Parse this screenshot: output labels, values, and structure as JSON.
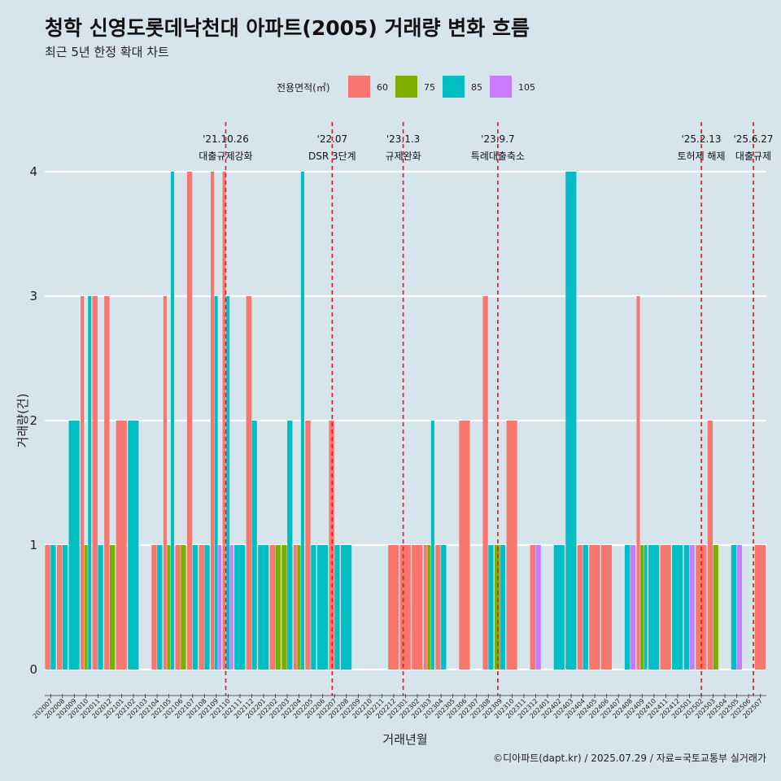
{
  "chart_data": {
    "type": "bar",
    "title": "청학 신영도롯데낙천대 아파트(2005) 거래량 변화 흐름",
    "subtitle": "최근 5년 한정 확대 차트",
    "xlabel": "거래년월",
    "ylabel": "거래량(건)",
    "ylim": [
      0,
      4
    ],
    "yticks": [
      0,
      1,
      2,
      3,
      4
    ],
    "caption": "©디아파트(dapt.kr) / 2025.07.29 / 자료=국토교통부 실거래가",
    "legend": {
      "title": "전용면적(㎡)",
      "entries": [
        {
          "label": "60",
          "color": "#F8766D"
        },
        {
          "label": "75",
          "color": "#7CAE00"
        },
        {
          "label": "85",
          "color": "#00BFC4"
        },
        {
          "label": "105",
          "color": "#C77CFF"
        }
      ]
    },
    "categories": [
      "202007",
      "202008",
      "202009",
      "202010",
      "202011",
      "202012",
      "202101",
      "202102",
      "202103",
      "202104",
      "202105",
      "202106",
      "202107",
      "202108",
      "202109",
      "202110",
      "202111",
      "202112",
      "202201",
      "202202",
      "202203",
      "202204",
      "202205",
      "202206",
      "202207",
      "202208",
      "202209",
      "202210",
      "202211",
      "202212",
      "202301",
      "202302",
      "202303",
      "202304",
      "202305",
      "202306",
      "202307",
      "202308",
      "202309",
      "202310",
      "202311",
      "202312",
      "202401",
      "202402",
      "202403",
      "202404",
      "202405",
      "202406",
      "202407",
      "202408",
      "202409",
      "202410",
      "202411",
      "202412",
      "202501",
      "202502",
      "202503",
      "202504",
      "202505",
      "202506",
      "202507"
    ],
    "bars": [
      {
        "m": "202007",
        "v": [
          [
            60,
            1
          ],
          [
            85,
            1
          ]
        ]
      },
      {
        "m": "202008",
        "v": [
          [
            60,
            1
          ],
          [
            85,
            1
          ]
        ]
      },
      {
        "m": "202009",
        "v": [
          [
            85,
            2
          ]
        ]
      },
      {
        "m": "202010",
        "v": [
          [
            60,
            3
          ],
          [
            75,
            1
          ],
          [
            85,
            3
          ]
        ]
      },
      {
        "m": "202011",
        "v": [
          [
            60,
            3
          ],
          [
            85,
            1
          ]
        ]
      },
      {
        "m": "202012",
        "v": [
          [
            60,
            3
          ],
          [
            75,
            1
          ]
        ]
      },
      {
        "m": "202101",
        "v": [
          [
            60,
            2
          ]
        ]
      },
      {
        "m": "202102",
        "v": [
          [
            85,
            2
          ]
        ]
      },
      {
        "m": "202104",
        "v": [
          [
            60,
            1
          ],
          [
            85,
            1
          ]
        ]
      },
      {
        "m": "202105",
        "v": [
          [
            60,
            3
          ],
          [
            75,
            1
          ],
          [
            85,
            4
          ]
        ]
      },
      {
        "m": "202106",
        "v": [
          [
            60,
            1
          ],
          [
            75,
            1
          ]
        ]
      },
      {
        "m": "202107",
        "v": [
          [
            60,
            4
          ],
          [
            85,
            1
          ]
        ]
      },
      {
        "m": "202108",
        "v": [
          [
            60,
            1
          ],
          [
            85,
            1
          ]
        ]
      },
      {
        "m": "202109",
        "v": [
          [
            60,
            4
          ],
          [
            85,
            3
          ],
          [
            105,
            1
          ]
        ]
      },
      {
        "m": "202110",
        "v": [
          [
            60,
            4
          ],
          [
            85,
            3
          ],
          [
            105,
            1
          ]
        ]
      },
      {
        "m": "202111",
        "v": [
          [
            85,
            1
          ]
        ]
      },
      {
        "m": "202112",
        "v": [
          [
            60,
            3
          ],
          [
            85,
            2
          ]
        ]
      },
      {
        "m": "202201",
        "v": [
          [
            85,
            1
          ]
        ]
      },
      {
        "m": "202202",
        "v": [
          [
            60,
            1
          ],
          [
            75,
            1
          ]
        ]
      },
      {
        "m": "202203",
        "v": [
          [
            75,
            1
          ],
          [
            85,
            2
          ]
        ]
      },
      {
        "m": "202204",
        "v": [
          [
            60,
            1
          ],
          [
            75,
            1
          ],
          [
            85,
            4
          ]
        ]
      },
      {
        "m": "202205",
        "v": [
          [
            60,
            2
          ],
          [
            85,
            1
          ]
        ]
      },
      {
        "m": "202206",
        "v": [
          [
            85,
            1
          ]
        ]
      },
      {
        "m": "202207",
        "v": [
          [
            60,
            2
          ],
          [
            85,
            1
          ]
        ]
      },
      {
        "m": "202208",
        "v": [
          [
            85,
            1
          ]
        ]
      },
      {
        "m": "202212",
        "v": [
          [
            60,
            1
          ]
        ]
      },
      {
        "m": "202301",
        "v": [
          [
            60,
            1
          ]
        ]
      },
      {
        "m": "202302",
        "v": [
          [
            60,
            1
          ]
        ]
      },
      {
        "m": "202303",
        "v": [
          [
            60,
            1
          ],
          [
            75,
            1
          ],
          [
            85,
            2
          ]
        ]
      },
      {
        "m": "202304",
        "v": [
          [
            60,
            1
          ],
          [
            85,
            1
          ]
        ]
      },
      {
        "m": "202306",
        "v": [
          [
            60,
            2
          ]
        ]
      },
      {
        "m": "202308",
        "v": [
          [
            60,
            3
          ],
          [
            85,
            1
          ]
        ]
      },
      {
        "m": "202309",
        "v": [
          [
            75,
            1
          ],
          [
            85,
            1
          ]
        ]
      },
      {
        "m": "202310",
        "v": [
          [
            60,
            2
          ]
        ]
      },
      {
        "m": "202312",
        "v": [
          [
            60,
            1
          ],
          [
            105,
            1
          ]
        ]
      },
      {
        "m": "202402",
        "v": [
          [
            85,
            1
          ]
        ]
      },
      {
        "m": "202403",
        "v": [
          [
            85,
            4
          ]
        ]
      },
      {
        "m": "202404",
        "v": [
          [
            60,
            1
          ],
          [
            85,
            1
          ]
        ]
      },
      {
        "m": "202405",
        "v": [
          [
            60,
            1
          ]
        ]
      },
      {
        "m": "202406",
        "v": [
          [
            60,
            1
          ]
        ]
      },
      {
        "m": "202408",
        "v": [
          [
            85,
            1
          ],
          [
            105,
            1
          ]
        ]
      },
      {
        "m": "202409",
        "v": [
          [
            60,
            3
          ],
          [
            75,
            1
          ],
          [
            85,
            1
          ]
        ]
      },
      {
        "m": "202410",
        "v": [
          [
            85,
            1
          ]
        ]
      },
      {
        "m": "202411",
        "v": [
          [
            60,
            1
          ]
        ]
      },
      {
        "m": "202412",
        "v": [
          [
            85,
            1
          ]
        ]
      },
      {
        "m": "202501",
        "v": [
          [
            85,
            1
          ],
          [
            105,
            1
          ]
        ]
      },
      {
        "m": "202502",
        "v": [
          [
            60,
            1
          ]
        ]
      },
      {
        "m": "202503",
        "v": [
          [
            60,
            2
          ],
          [
            75,
            1
          ]
        ]
      },
      {
        "m": "202505",
        "v": [
          [
            85,
            1
          ],
          [
            105,
            1
          ]
        ]
      },
      {
        "m": "202507",
        "v": [
          [
            60,
            1
          ]
        ]
      }
    ],
    "events": [
      {
        "date": "'21.10.26",
        "label": "대출규제강화",
        "at": 15.3
      },
      {
        "date": "'22.07",
        "label": "DSR 3단계",
        "at": 24.3
      },
      {
        "date": "'23.1.3",
        "label": "규제완화",
        "at": 30.3
      },
      {
        "date": "'23.9.7",
        "label": "특례대출축소",
        "at": 38.3
      },
      {
        "date": "'25.2.13",
        "label": "토허제 해제",
        "at": 55.5
      },
      {
        "date": "'25.6.27",
        "label": "대출규제",
        "at": 59.9
      }
    ]
  }
}
